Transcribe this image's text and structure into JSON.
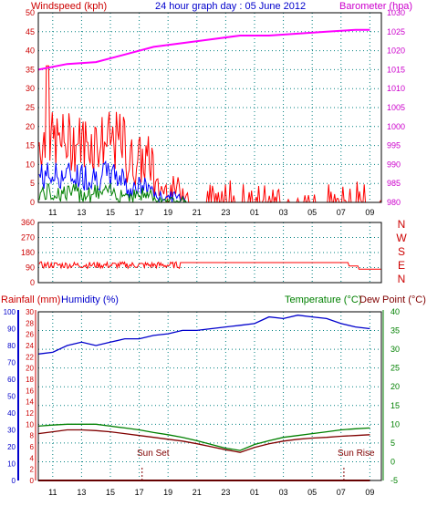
{
  "header": {
    "left_label": "Windspeed (kph)",
    "title": "24 hour graph day : 05 June 2012",
    "right_label": "Barometer (hpa)"
  },
  "colors": {
    "wind_gust": "#ff0000",
    "wind_avg": "#0000ff",
    "wind_min": "#008000",
    "barometer": "#ff00ff",
    "direction": "#ff0000",
    "humidity": "#0000cc",
    "temperature": "#008000",
    "dewpoint": "#800000",
    "rain": "#cc0000",
    "grid": "#008080",
    "frame": "#000000"
  },
  "x_ticks": [
    "11",
    "13",
    "15",
    "17",
    "19",
    "21",
    "23",
    "01",
    "03",
    "05",
    "07",
    "09"
  ],
  "lower_labels": {
    "rain": "Rainfall (mm)",
    "humidity": "Humidity (%)",
    "temperature": "Temperature (°C)",
    "dewpoint": "Dew Point (°C)",
    "sunset": "Sun Set",
    "sunrise": "Sun Rise"
  },
  "compass_labels": [
    "N",
    "W",
    "S",
    "E",
    "N"
  ],
  "chart_data": [
    {
      "type": "line",
      "name": "wind-barometer",
      "x_unit": "hour",
      "x_ticks": [
        "11",
        "13",
        "15",
        "17",
        "19",
        "21",
        "23",
        "01",
        "03",
        "05",
        "07",
        "09"
      ],
      "ylim_left": [
        0,
        50
      ],
      "ylim_right": [
        980,
        1030
      ],
      "y_ticks_left": [
        0,
        5,
        10,
        15,
        20,
        25,
        30,
        35,
        40,
        45,
        50
      ],
      "y_ticks_right": [
        980,
        985,
        990,
        995,
        1000,
        1005,
        1010,
        1015,
        1020,
        1025,
        1030
      ],
      "series": [
        {
          "name": "Barometer (hpa)",
          "axis": "right",
          "x": [
            0,
            2,
            4,
            6,
            8,
            10,
            12,
            14,
            16,
            18,
            20,
            22,
            23
          ],
          "values": [
            1015,
            1016.5,
            1017,
            1019,
            1021,
            1022,
            1023,
            1024,
            1024,
            1024.5,
            1025,
            1025.5,
            1025.5
          ]
        }
      ]
    },
    {
      "type": "line",
      "name": "wind-direction",
      "y_ticks": [
        0,
        90,
        180,
        270,
        360
      ],
      "ylim": [
        0,
        360
      ],
      "series": [
        {
          "name": "Direction",
          "x": [
            0,
            9,
            10,
            21,
            22,
            23
          ],
          "values": [
            110,
            115,
            120,
            120,
            100,
            80
          ]
        }
      ]
    },
    {
      "type": "line",
      "name": "temp-humidity-rain",
      "y_ticks_humidity": [
        0,
        10,
        20,
        30,
        40,
        50,
        60,
        70,
        80,
        90,
        100
      ],
      "y_ticks_rain": [
        0,
        2,
        4,
        6,
        8,
        10,
        12,
        14,
        16,
        18,
        20,
        22,
        24,
        26,
        28,
        30
      ],
      "y_ticks_temp": [
        -5,
        0,
        5,
        10,
        15,
        20,
        25,
        30,
        35,
        40
      ],
      "series": [
        {
          "name": "Humidity (%)",
          "axis": "humidity",
          "x": [
            0,
            1,
            2,
            3,
            4,
            5,
            6,
            7,
            8,
            9,
            10,
            11,
            12,
            13,
            14,
            15,
            16,
            17,
            18,
            19,
            20,
            21,
            22,
            23
          ],
          "values": [
            75,
            76,
            80,
            82,
            80,
            82,
            84,
            84,
            86,
            87,
            89,
            89,
            90,
            91,
            92,
            93,
            97,
            96,
            98,
            97,
            96,
            93,
            91,
            90
          ]
        },
        {
          "name": "Temperature (°C)",
          "axis": "temp",
          "x": [
            0,
            1,
            2,
            3,
            4,
            5,
            6,
            7,
            8,
            9,
            10,
            11,
            12,
            13,
            14,
            15,
            16,
            17,
            18,
            19,
            20,
            21,
            22,
            23
          ],
          "values": [
            9.5,
            9.8,
            10,
            10,
            10,
            9.5,
            9,
            8.5,
            7.8,
            7.2,
            6.5,
            5.6,
            4.6,
            3.6,
            3.0,
            4.6,
            5.6,
            6.5,
            7,
            7.5,
            8,
            8.5,
            8.8,
            9
          ]
        },
        {
          "name": "Dew Point (°C)",
          "axis": "temp",
          "x": [
            0,
            1,
            2,
            3,
            4,
            5,
            6,
            7,
            8,
            9,
            10,
            11,
            12,
            13,
            14,
            15,
            16,
            17,
            18,
            19,
            20,
            21,
            22,
            23
          ],
          "values": [
            7.5,
            8,
            8.5,
            8.5,
            8.3,
            8,
            7.5,
            7,
            6.5,
            6,
            5.5,
            4.8,
            4,
            3.2,
            2.5,
            3.8,
            4.8,
            5.5,
            6,
            6.3,
            6.5,
            6.8,
            7,
            7.2
          ]
        },
        {
          "name": "Rainfall (mm)",
          "axis": "rain",
          "x": [
            0,
            23
          ],
          "values": [
            0,
            0
          ]
        }
      ]
    }
  ]
}
